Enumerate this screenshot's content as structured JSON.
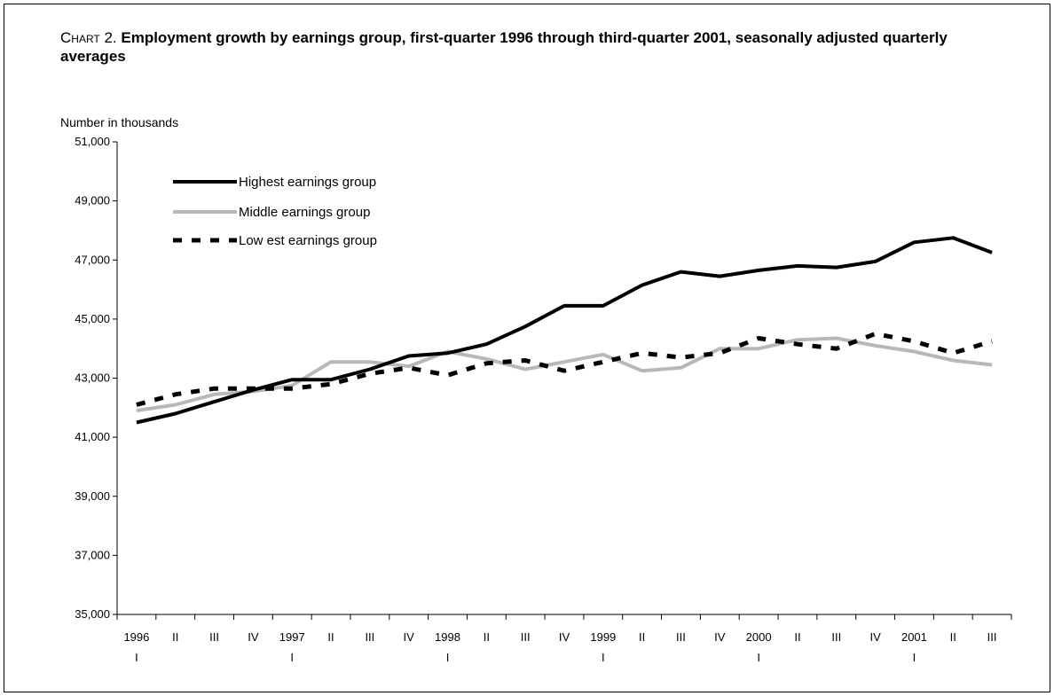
{
  "title_prefix": "Chart 2.",
  "title": "Employment growth by earnings group, first-quarter 1996 through third-quarter 2001, seasonally adjusted quarterly averages",
  "chart_data": {
    "type": "line",
    "ylabel": "Number in thousands",
    "xlabel": "",
    "ylim": [
      35000,
      51000
    ],
    "yticks": [
      "35,000",
      "37,000",
      "39,000",
      "41,000",
      "43,000",
      "45,000",
      "47,000",
      "49,000",
      "51,000"
    ],
    "ytick_values": [
      35000,
      37000,
      39000,
      41000,
      43000,
      45000,
      47000,
      49000,
      51000
    ],
    "grid": false,
    "legend_position": "top-left",
    "categories": [
      "1996 I",
      "II",
      "III",
      "IV",
      "1997 I",
      "II",
      "III",
      "IV",
      "1998 I",
      "II",
      "III",
      "IV",
      "1999 I",
      "II",
      "III",
      "IV",
      "2000 I",
      "II",
      "III",
      "IV",
      "2001 I",
      "II",
      "III"
    ],
    "tick_labels_top": [
      "1996",
      "II",
      "III",
      "IV",
      "1997",
      "II",
      "III",
      "IV",
      "1998",
      "II",
      "III",
      "IV",
      "1999",
      "II",
      "III",
      "IV",
      "2000",
      "II",
      "III",
      "IV",
      "2001",
      "II",
      "III"
    ],
    "tick_labels_bottom": [
      "I",
      "",
      "",
      "",
      "I",
      "",
      "",
      "",
      "I",
      "",
      "",
      "",
      "I",
      "",
      "",
      "",
      "I",
      "",
      "",
      "",
      "I",
      "",
      ""
    ],
    "series": [
      {
        "name": "Highest earnings group",
        "color": "#000000",
        "style": "solid",
        "values": [
          41500,
          41800,
          42200,
          42600,
          42950,
          42950,
          43300,
          43750,
          43850,
          44150,
          44750,
          45450,
          45450,
          46150,
          46600,
          46450,
          46650,
          46800,
          46750,
          46950,
          47600,
          47750,
          47250
        ]
      },
      {
        "name": "Middle earnings group",
        "color": "#b8b8b8",
        "style": "solid",
        "values": [
          41900,
          42100,
          42450,
          42550,
          42750,
          43550,
          43550,
          43400,
          43900,
          43650,
          43300,
          43550,
          43800,
          43250,
          43350,
          44000,
          44000,
          44300,
          44350,
          44100,
          43900,
          43600,
          43450
        ]
      },
      {
        "name": "Low est earnings group",
        "color": "#000000",
        "style": "dashed",
        "values": [
          42100,
          42450,
          42650,
          42650,
          42650,
          42800,
          43150,
          43350,
          43100,
          43500,
          43600,
          43250,
          43550,
          43850,
          43700,
          43850,
          44350,
          44150,
          44000,
          44500,
          44250,
          43850,
          44250
        ]
      }
    ]
  }
}
